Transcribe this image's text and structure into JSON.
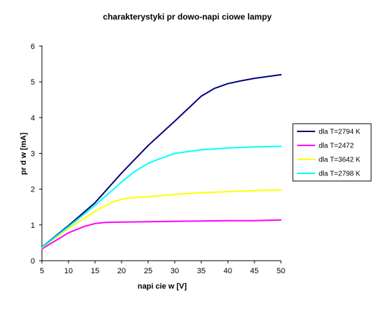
{
  "chart_data": {
    "type": "line",
    "title": "charakterystyki pr  dowo-napi  ciowe lampy",
    "xlabel": "napi  cie w [V]",
    "ylabel": "pr  d  w  [mA]",
    "xlim": [
      5,
      50
    ],
    "ylim": [
      0,
      6
    ],
    "xticks": [
      5,
      10,
      15,
      20,
      25,
      30,
      35,
      40,
      45,
      50
    ],
    "yticks": [
      0,
      1,
      2,
      3,
      4,
      5,
      6
    ],
    "grid": false,
    "legend_position": "right",
    "series": [
      {
        "name": "dla T=2794 K",
        "color": "#000080",
        "points": [
          [
            5,
            0.38
          ],
          [
            10,
            0.98
          ],
          [
            15,
            1.62
          ],
          [
            20,
            2.45
          ],
          [
            25,
            3.22
          ],
          [
            30,
            3.9
          ],
          [
            32.5,
            4.25
          ],
          [
            35,
            4.6
          ],
          [
            37.5,
            4.82
          ],
          [
            40,
            4.95
          ],
          [
            42.5,
            5.03
          ],
          [
            45,
            5.1
          ],
          [
            47.5,
            5.15
          ],
          [
            50,
            5.2
          ]
        ]
      },
      {
        "name": "dla T=2472",
        "color": "#ff00ff",
        "points": [
          [
            5,
            0.33
          ],
          [
            10,
            0.78
          ],
          [
            13,
            0.96
          ],
          [
            15,
            1.04
          ],
          [
            17,
            1.07
          ],
          [
            20,
            1.08
          ],
          [
            25,
            1.09
          ],
          [
            30,
            1.1
          ],
          [
            35,
            1.11
          ],
          [
            40,
            1.12
          ],
          [
            45,
            1.12
          ],
          [
            50,
            1.14
          ]
        ]
      },
      {
        "name": "dla T=3642 K",
        "color": "#ffff00",
        "points": [
          [
            5,
            0.36
          ],
          [
            10,
            0.9
          ],
          [
            15,
            1.38
          ],
          [
            18,
            1.62
          ],
          [
            20,
            1.72
          ],
          [
            22,
            1.76
          ],
          [
            25,
            1.79
          ],
          [
            30,
            1.85
          ],
          [
            35,
            1.9
          ],
          [
            40,
            1.93
          ],
          [
            45,
            1.96
          ],
          [
            50,
            1.98
          ]
        ]
      },
      {
        "name": "dla T=2798 K",
        "color": "#00ffff",
        "points": [
          [
            5,
            0.37
          ],
          [
            10,
            0.95
          ],
          [
            15,
            1.55
          ],
          [
            20,
            2.2
          ],
          [
            22.5,
            2.5
          ],
          [
            25,
            2.72
          ],
          [
            27.5,
            2.87
          ],
          [
            30,
            3.0
          ],
          [
            32.5,
            3.05
          ],
          [
            35,
            3.1
          ],
          [
            40,
            3.15
          ],
          [
            45,
            3.18
          ],
          [
            50,
            3.2
          ]
        ]
      }
    ]
  }
}
